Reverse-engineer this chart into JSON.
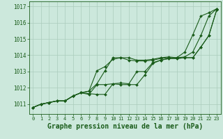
{
  "bg_color": "#cce8dc",
  "grid_color": "#aaccbb",
  "line_color": "#1a5c1a",
  "title": "Graphe pression niveau de la mer (hPa)",
  "title_fontsize": 7,
  "ylim": [
    1010.4,
    1017.3
  ],
  "xlim": [
    -0.5,
    23.5
  ],
  "yticks": [
    1011,
    1012,
    1013,
    1014,
    1015,
    1016,
    1017
  ],
  "xticks": [
    0,
    1,
    2,
    3,
    4,
    5,
    6,
    7,
    8,
    9,
    10,
    11,
    12,
    13,
    14,
    15,
    16,
    17,
    18,
    19,
    20,
    21,
    22,
    23
  ],
  "series": [
    [
      1010.8,
      1011.0,
      1011.1,
      1011.2,
      1011.2,
      1011.5,
      1011.7,
      1011.6,
      1012.2,
      1012.2,
      1012.25,
      1012.2,
      1012.2,
      1012.2,
      1012.8,
      1013.5,
      1013.7,
      1013.8,
      1013.8,
      1013.85,
      1013.85,
      1014.5,
      1015.2,
      1016.8
    ],
    [
      1010.8,
      1011.0,
      1011.1,
      1011.2,
      1011.2,
      1011.5,
      1011.7,
      1011.65,
      1011.6,
      1011.6,
      1012.25,
      1012.3,
      1012.25,
      1013.0,
      1013.0,
      1013.55,
      1013.7,
      1013.8,
      1013.8,
      1013.85,
      1013.85,
      1014.5,
      1015.2,
      1016.8
    ],
    [
      1010.8,
      1011.0,
      1011.1,
      1011.2,
      1011.2,
      1011.5,
      1011.7,
      1011.8,
      1013.05,
      1013.3,
      1013.75,
      1013.85,
      1013.7,
      1013.65,
      1013.65,
      1013.7,
      1013.8,
      1013.85,
      1013.85,
      1013.9,
      1014.2,
      1015.2,
      1016.4,
      1016.85
    ],
    [
      1010.8,
      1011.0,
      1011.1,
      1011.2,
      1011.2,
      1011.5,
      1011.7,
      1011.8,
      1012.25,
      1013.05,
      1013.85,
      1013.85,
      1013.85,
      1013.7,
      1013.7,
      1013.75,
      1013.85,
      1013.9,
      1013.85,
      1014.2,
      1015.25,
      1016.4,
      1016.6,
      1016.85
    ]
  ],
  "marker": "D",
  "markersize": 2.0,
  "linewidth": 0.8
}
